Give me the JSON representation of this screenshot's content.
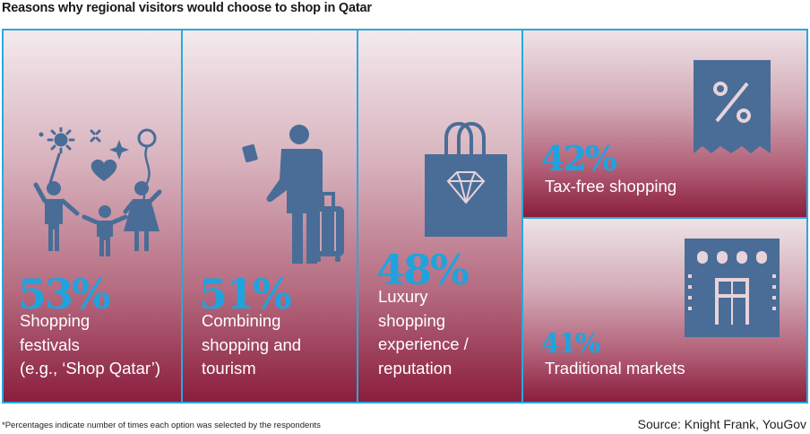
{
  "title": "Reasons why regional visitors would choose to shop in Qatar",
  "panels": [
    {
      "percent": "53%",
      "label_lines": [
        "Shopping",
        "festivals",
        "(e.g., ‘Shop Qatar’)"
      ],
      "icon": "family-celebration-icon"
    },
    {
      "percent": "51%",
      "label_lines": [
        "Combining",
        "shopping and",
        "tourism"
      ],
      "icon": "traveler-with-luggage-icon"
    },
    {
      "percent": "48%",
      "label_lines": [
        "Luxury",
        "shopping",
        "experience /",
        "reputation"
      ],
      "icon": "shopping-bag-diamond-icon"
    },
    {
      "percent": "42%",
      "label_lines": [
        "Tax-free shopping"
      ],
      "icon": "percent-receipt-icon"
    },
    {
      "percent": "41%",
      "label_lines": [
        "Traditional markets"
      ],
      "icon": "market-building-icon"
    }
  ],
  "footnote": "*Percentages indicate number of times each option was selected by the respondents",
  "source": "Source: Knight Frank, YouGov",
  "colors": {
    "border": "#29a8e0",
    "percent": "#1fa3df",
    "icon": "#496d97",
    "gradient_bottom": "#8a1e3d"
  }
}
